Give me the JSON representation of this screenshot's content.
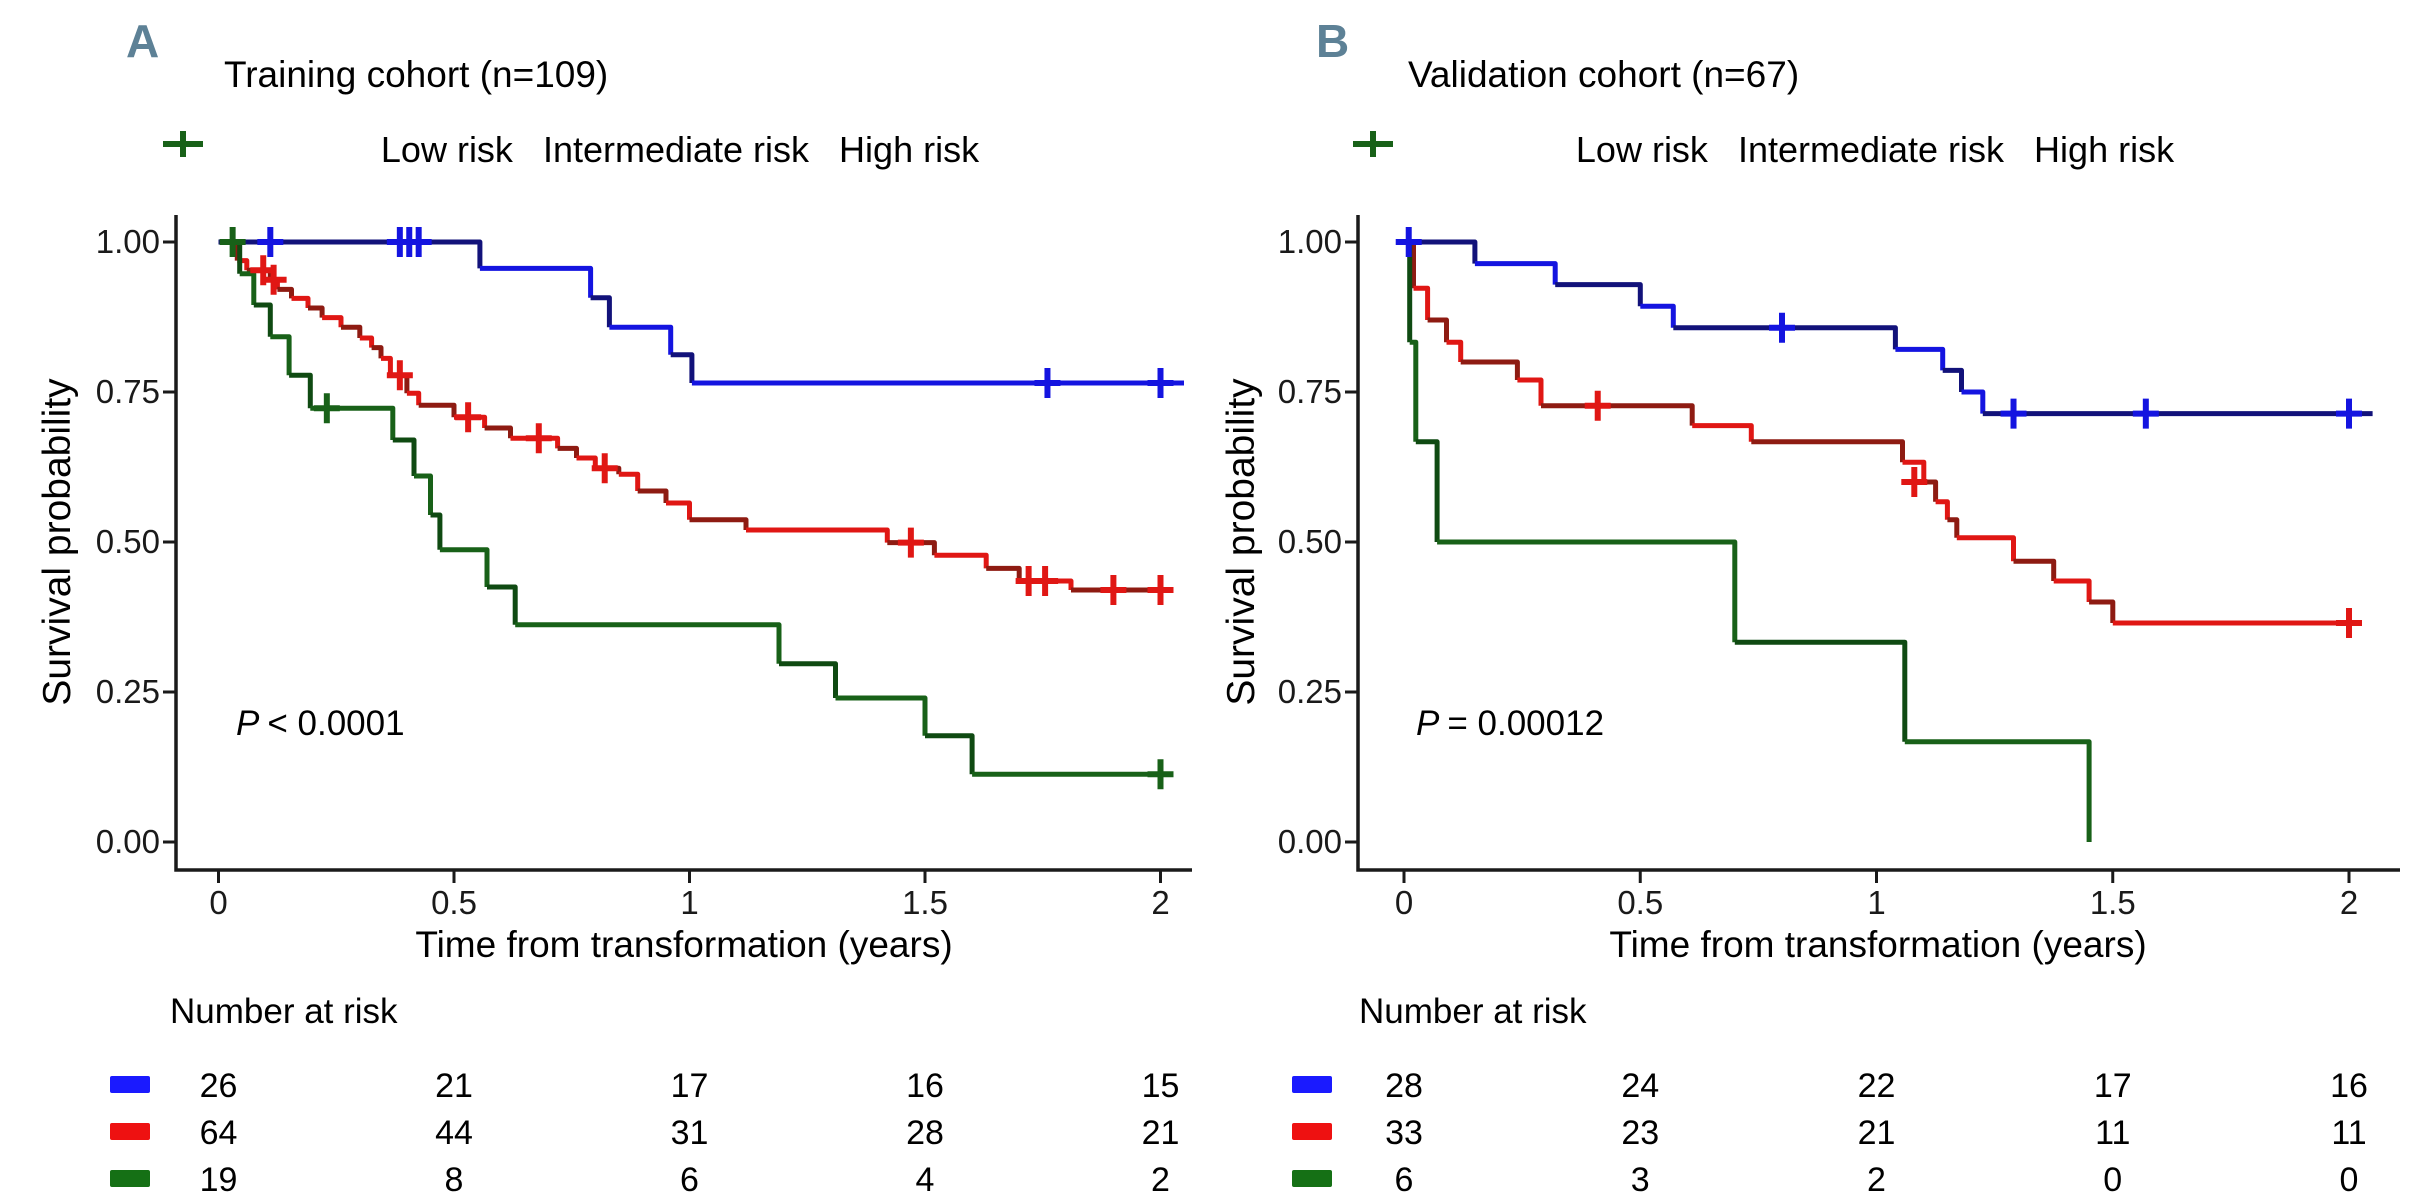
{
  "figure_type": "kaplan_meier_survival_figure",
  "colors": {
    "background": "#ffffff",
    "axis": "#1a1a1a",
    "panel_label": "#5d8196",
    "text": "#000000",
    "low_risk_bright": "#1414E0",
    "low_risk_dark": "#12127A",
    "intermediate_risk_bright": "#E01714",
    "intermediate_risk_dark": "#8E1B12",
    "high_risk_bright": "#186118",
    "high_risk_dark": "#0F4A12",
    "swatch_low": "#1A1AFF",
    "swatch_intermediate": "#EE1111",
    "swatch_high": "#157015"
  },
  "legend": {
    "items": [
      {
        "label": "Low risk",
        "color": "#1414E0"
      },
      {
        "label": "Intermediate risk",
        "color": "#E01714"
      },
      {
        "label": "High risk",
        "color": "#186118"
      }
    ]
  },
  "chart_data": [
    {
      "type": "line",
      "subtype": "kaplan_meier_step",
      "panel_label": "A",
      "title": "Training cohort (n=109)",
      "xlabel": "Time from transformation (years)",
      "ylabel": "Survival probability",
      "pvalue": {
        "symbol": "P",
        "text": "< 0.0001"
      },
      "legend_position": "top",
      "grid": false,
      "xlim": [
        0,
        2.07
      ],
      "ylim": [
        0,
        1.05
      ],
      "xticks": [
        0,
        0.5,
        1,
        1.5,
        2
      ],
      "xtick_labels": [
        "0",
        "0.5",
        "1",
        "1.5",
        "2"
      ],
      "yticks": [
        0,
        0.25,
        0.5,
        0.75,
        1
      ],
      "ytick_labels": [
        "0.00",
        "0.25",
        "0.50",
        "0.75",
        "1.00"
      ],
      "series": [
        {
          "name": "Low risk",
          "color": "#1414E0",
          "color_dark": "#12127A",
          "steps": [
            [
              0,
              1
            ],
            [
              0.555,
              0.956
            ],
            [
              0.79,
              0.907
            ],
            [
              0.83,
              0.858
            ],
            [
              0.96,
              0.812
            ],
            [
              1.005,
              0.765
            ],
            [
              2.05,
              0.765
            ]
          ],
          "censors": [
            [
              0.11,
              1
            ],
            [
              0.385,
              1
            ],
            [
              0.405,
              1
            ],
            [
              0.425,
              1
            ],
            [
              1.76,
              0.765
            ],
            [
              2.0,
              0.765
            ]
          ]
        },
        {
          "name": "Intermediate risk",
          "color": "#E01714",
          "color_dark": "#8E1B12",
          "steps": [
            [
              0,
              1
            ],
            [
              0.04,
              0.969
            ],
            [
              0.06,
              0.953
            ],
            [
              0.11,
              0.937
            ],
            [
              0.125,
              0.921
            ],
            [
              0.155,
              0.906
            ],
            [
              0.19,
              0.89
            ],
            [
              0.22,
              0.874
            ],
            [
              0.26,
              0.858
            ],
            [
              0.3,
              0.84
            ],
            [
              0.325,
              0.824
            ],
            [
              0.345,
              0.806
            ],
            [
              0.365,
              0.778
            ],
            [
              0.4,
              0.748
            ],
            [
              0.425,
              0.728
            ],
            [
              0.5,
              0.708
            ],
            [
              0.565,
              0.69
            ],
            [
              0.62,
              0.673
            ],
            [
              0.72,
              0.656
            ],
            [
              0.76,
              0.64
            ],
            [
              0.8,
              0.623
            ],
            [
              0.85,
              0.613
            ],
            [
              0.89,
              0.585
            ],
            [
              0.95,
              0.565
            ],
            [
              1.0,
              0.537
            ],
            [
              1.12,
              0.52
            ],
            [
              1.42,
              0.499
            ],
            [
              1.52,
              0.478
            ],
            [
              1.63,
              0.456
            ],
            [
              1.7,
              0.435
            ],
            [
              1.81,
              0.42
            ],
            [
              2.02,
              0.42
            ]
          ],
          "censors": [
            [
              0.095,
              0.953
            ],
            [
              0.117,
              0.937
            ],
            [
              0.385,
              0.778
            ],
            [
              0.53,
              0.708
            ],
            [
              0.68,
              0.673
            ],
            [
              0.82,
              0.623
            ],
            [
              1.47,
              0.499
            ],
            [
              1.72,
              0.435
            ],
            [
              1.755,
              0.435
            ],
            [
              1.9,
              0.42
            ],
            [
              2.0,
              0.42
            ]
          ]
        },
        {
          "name": "High risk",
          "color": "#186118",
          "color_dark": "#0F4A12",
          "steps": [
            [
              0,
              1
            ],
            [
              0.045,
              0.947
            ],
            [
              0.075,
              0.895
            ],
            [
              0.11,
              0.842
            ],
            [
              0.15,
              0.778
            ],
            [
              0.195,
              0.723
            ],
            [
              0.37,
              0.67
            ],
            [
              0.415,
              0.61
            ],
            [
              0.45,
              0.545
            ],
            [
              0.47,
              0.487
            ],
            [
              0.57,
              0.425
            ],
            [
              0.63,
              0.362
            ],
            [
              1.19,
              0.297
            ],
            [
              1.31,
              0.24
            ],
            [
              1.5,
              0.177
            ],
            [
              1.6,
              0.113
            ],
            [
              2.0,
              0.113
            ]
          ],
          "censors": [
            [
              0.03,
              1
            ],
            [
              0.23,
              0.723
            ],
            [
              2.0,
              0.113
            ]
          ]
        }
      ],
      "number_at_risk": {
        "title": "Number at risk",
        "times": [
          0,
          0.5,
          1,
          1.5,
          2
        ],
        "rows": [
          {
            "name": "Low risk",
            "color": "#1A1AFF",
            "values": [
              26,
              21,
              17,
              16,
              15
            ]
          },
          {
            "name": "Intermediate risk",
            "color": "#EE1111",
            "values": [
              64,
              44,
              31,
              28,
              21
            ]
          },
          {
            "name": "High risk",
            "color": "#157015",
            "values": [
              19,
              8,
              6,
              4,
              2
            ]
          }
        ]
      }
    },
    {
      "type": "line",
      "subtype": "kaplan_meier_step",
      "panel_label": "B",
      "title": "Validation cohort (n=67)",
      "xlabel": "Time from transformation (years)",
      "ylabel": "Survival probability",
      "pvalue": {
        "symbol": "P",
        "text": "= 0.00012"
      },
      "legend_position": "top",
      "grid": false,
      "xlim": [
        0,
        2.07
      ],
      "ylim": [
        0,
        1.05
      ],
      "xticks": [
        0,
        0.5,
        1,
        1.5,
        2
      ],
      "xtick_labels": [
        "0",
        "0.5",
        "1",
        "1.5",
        "2"
      ],
      "yticks": [
        0,
        0.25,
        0.5,
        0.75,
        1
      ],
      "ytick_labels": [
        "0.00",
        "0.25",
        "0.50",
        "0.75",
        "1.00"
      ],
      "series": [
        {
          "name": "Low risk",
          "color": "#1414E0",
          "color_dark": "#12127A",
          "steps": [
            [
              0,
              1
            ],
            [
              0.15,
              0.964
            ],
            [
              0.32,
              0.929
            ],
            [
              0.5,
              0.893
            ],
            [
              0.57,
              0.857
            ],
            [
              1.04,
              0.821
            ],
            [
              1.14,
              0.786
            ],
            [
              1.18,
              0.75
            ],
            [
              1.225,
              0.714
            ],
            [
              2.05,
              0.714
            ]
          ],
          "censors": [
            [
              0.01,
              1
            ],
            [
              0.8,
              0.857
            ],
            [
              1.29,
              0.714
            ],
            [
              1.57,
              0.714
            ],
            [
              2.0,
              0.714
            ]
          ]
        },
        {
          "name": "Intermediate risk",
          "color": "#E01714",
          "color_dark": "#8E1B12",
          "steps": [
            [
              0,
              1
            ],
            [
              0.02,
              0.923
            ],
            [
              0.05,
              0.87
            ],
            [
              0.09,
              0.833
            ],
            [
              0.12,
              0.8
            ],
            [
              0.24,
              0.77
            ],
            [
              0.29,
              0.727
            ],
            [
              0.61,
              0.694
            ],
            [
              0.735,
              0.667
            ],
            [
              1.055,
              0.633
            ],
            [
              1.1,
              0.6
            ],
            [
              1.125,
              0.567
            ],
            [
              1.15,
              0.537
            ],
            [
              1.17,
              0.507
            ],
            [
              1.29,
              0.468
            ],
            [
              1.375,
              0.435
            ],
            [
              1.45,
              0.4
            ],
            [
              1.5,
              0.365
            ],
            [
              2.02,
              0.365
            ]
          ],
          "censors": [
            [
              0.41,
              0.727
            ],
            [
              1.08,
              0.6
            ],
            [
              2.0,
              0.365
            ]
          ]
        },
        {
          "name": "High risk",
          "color": "#186118",
          "color_dark": "#0F4A12",
          "steps": [
            [
              0,
              1
            ],
            [
              0.012,
              0.833
            ],
            [
              0.025,
              0.667
            ],
            [
              0.07,
              0.5
            ],
            [
              0.7,
              0.333
            ],
            [
              1.06,
              0.167
            ],
            [
              1.45,
              0
            ]
          ],
          "censors": []
        }
      ],
      "number_at_risk": {
        "title": "Number at risk",
        "times": [
          0,
          0.5,
          1,
          1.5,
          2
        ],
        "rows": [
          {
            "name": "Low risk",
            "color": "#1A1AFF",
            "values": [
              28,
              24,
              22,
              17,
              16
            ]
          },
          {
            "name": "Intermediate risk",
            "color": "#EE1111",
            "values": [
              33,
              23,
              21,
              11,
              11
            ]
          },
          {
            "name": "High risk",
            "color": "#157015",
            "values": [
              6,
              3,
              2,
              0,
              0
            ]
          }
        ]
      }
    }
  ]
}
